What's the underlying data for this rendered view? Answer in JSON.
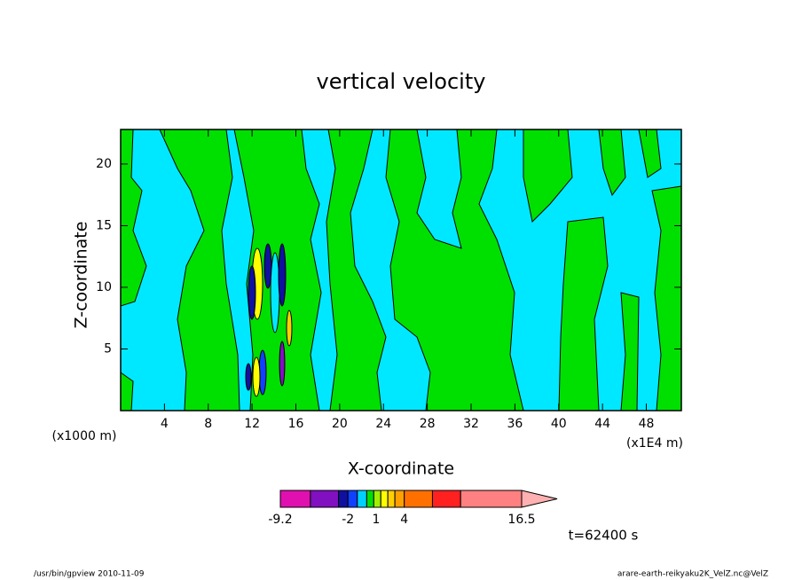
{
  "chart_data": {
    "type": "contour",
    "title": "vertical velocity",
    "xlabel": "X-coordinate",
    "ylabel": "Z-coordinate",
    "xunit": "(x1E4 m)",
    "yunit": "(x1000 m)",
    "xlim": [
      0,
      51.2
    ],
    "ylim": [
      0,
      22.8
    ],
    "xticks": [
      4,
      8,
      12,
      16,
      20,
      24,
      28,
      32,
      36,
      40,
      44,
      48
    ],
    "yticks": [
      5,
      10,
      15,
      20
    ],
    "colorbar": {
      "levels": [
        -9.2,
        -6,
        -3,
        -2,
        -1,
        0,
        0.75,
        1.5,
        2.25,
        3,
        4,
        7,
        10,
        16.5
      ],
      "colors": [
        "#e010b0",
        "#8010c0",
        "#1010a0",
        "#1040ff",
        "#00d0ff",
        "#00e000",
        "#a0f000",
        "#ffff00",
        "#ffd000",
        "#ffa000",
        "#ff7000",
        "#ff2020",
        "#ff8080"
      ],
      "extend_color": "#ffb0b0",
      "ticks": [
        -9.2,
        -2,
        1,
        4,
        16.5
      ]
    },
    "time_label": "t=62400 s",
    "footer_left": "/usr/bin/gpview  2010-11-09",
    "footer_right": "arare-earth-reikyaku2K_VelZ.nc@VelZ"
  }
}
